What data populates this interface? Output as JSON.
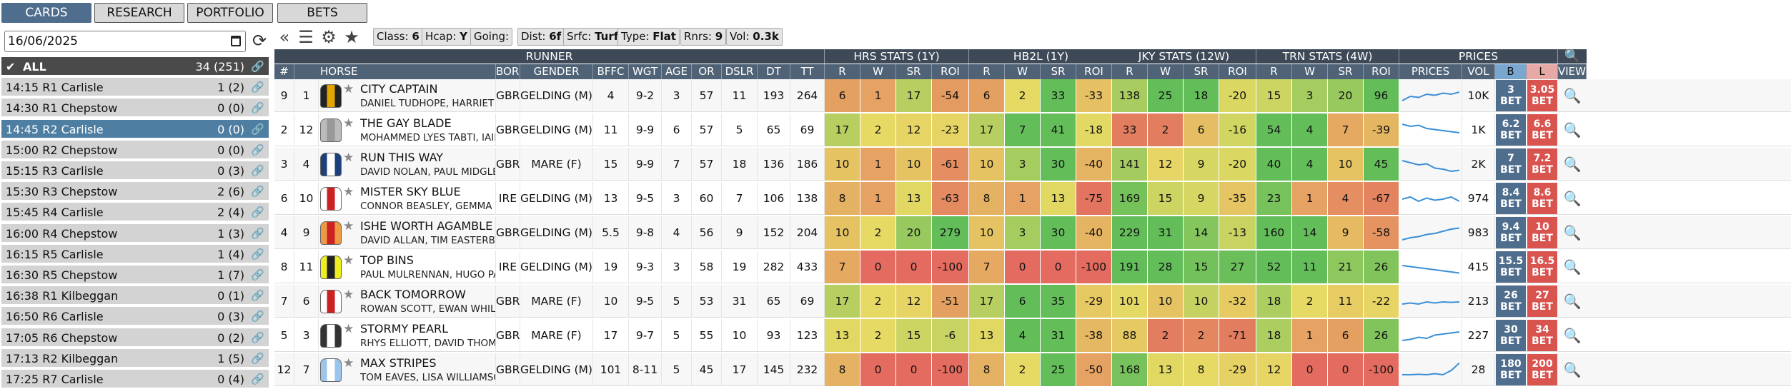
{
  "nav": {
    "cards": "CARDS",
    "research": "RESEARCH",
    "portfolio": "PORTFOLIO",
    "bets": "BETS"
  },
  "date": "16/06/2025",
  "races": [
    {
      "name": "ALL",
      "count": "34 (251)"
    },
    {
      "name": "14:15 R1 Carlisle",
      "count": "1 (2)"
    },
    {
      "name": "14:30 R1 Chepstow",
      "count": "0 (0)"
    },
    {
      "name": "14:45 R2 Carlisle",
      "count": "0 (0)"
    },
    {
      "name": "15:00 R2 Chepstow",
      "count": "0 (0)"
    },
    {
      "name": "15:15 R3 Carlisle",
      "count": "0 (3)"
    },
    {
      "name": "15:30 R3 Chepstow",
      "count": "2 (6)"
    },
    {
      "name": "15:45 R4 Carlisle",
      "count": "2 (4)"
    },
    {
      "name": "16:00 R4 Chepstow",
      "count": "1 (3)"
    },
    {
      "name": "16:15 R5 Carlisle",
      "count": "1 (4)"
    },
    {
      "name": "16:30 R5 Chepstow",
      "count": "1 (7)"
    },
    {
      "name": "16:38 R1 Kilbeggan",
      "count": "0 (1)"
    },
    {
      "name": "16:50 R6 Carlisle",
      "count": "0 (3)"
    },
    {
      "name": "17:05 R6 Chepstow",
      "count": "0 (2)"
    },
    {
      "name": "17:13 R2 Kilbeggan",
      "count": "1 (5)"
    },
    {
      "name": "17:25 R7 Carlisle",
      "count": "0 (4)"
    }
  ],
  "pills": {
    "class_l": "Class:",
    "class_v": "6",
    "hcap_l": "Hcap:",
    "hcap_v": "Y",
    "going_l": "Going:",
    "going_v": "",
    "dist_l": "Dist:",
    "dist_v": "6f",
    "srfc_l": "Srfc:",
    "srfc_v": "Turf",
    "type_l": "Type:",
    "type_v": "Flat",
    "rnrs_l": "Rnrs:",
    "rnrs_v": "9",
    "vol_l": "Vol:",
    "vol_v": "0.3k"
  },
  "groups": {
    "runner": "RUNNER",
    "hrs": "HRS STATS (1Y)",
    "hb2l": "HB2L (1Y)",
    "jky": "JKY STATS (12W)",
    "trn": "TRN STATS (4W)",
    "prices": "PRICES"
  },
  "cols": {
    "num": "#",
    "dr": "DR",
    "horse": "HORSE",
    "born": "BORN",
    "gender": "GENDER",
    "bffc": "BFFC",
    "wgt": "WGT",
    "age": "AGE",
    "or": "OR",
    "dslr": "DSLR",
    "dt": "DT",
    "tt": "TT",
    "r": "R",
    "w": "W",
    "sr": "SR",
    "roi": "ROI",
    "prices": "PRICES",
    "vol": "VOL",
    "b": "B",
    "l": "L",
    "view": "VIEW"
  },
  "rows": [
    {
      "num": "9",
      "dr": "1",
      "horse": "CITY CAPTAIN",
      "people": "DANIEL TUDHOPE, HARRIET BETHELL",
      "born": "GBR",
      "gender": "GELDING (M)",
      "bffc": "4",
      "wgt": "9-2",
      "age": "3",
      "or": "57",
      "dslr": "11",
      "dt": "193",
      "tt": "264",
      "hrs": [
        "6",
        "1",
        "17",
        "-54"
      ],
      "hb2l": [
        "6",
        "2",
        "33",
        "-33"
      ],
      "jky": [
        "138",
        "25",
        "18",
        "-20"
      ],
      "trn": [
        "15",
        "3",
        "20",
        "96"
      ],
      "vol": "10K",
      "b": "3",
      "l": "3.05",
      "spark": [
        0.3,
        0.5,
        0.45,
        0.6,
        0.55,
        0.65,
        0.6,
        0.7
      ]
    },
    {
      "num": "2",
      "dr": "12",
      "horse": "THE GAY BLADE",
      "people": "MOHAMMED LYES TABTI, IAIN JARDINE",
      "born": "GBR",
      "gender": "GELDING (M)",
      "bffc": "11",
      "wgt": "9-9",
      "age": "6",
      "or": "57",
      "dslr": "5",
      "dt": "65",
      "tt": "69",
      "hrs": [
        "17",
        "2",
        "12",
        "-23"
      ],
      "hb2l": [
        "17",
        "7",
        "41",
        "-18"
      ],
      "jky": [
        "33",
        "2",
        "6",
        "-16"
      ],
      "trn": [
        "54",
        "4",
        "7",
        "-39"
      ],
      "vol": "1K",
      "b": "6.2",
      "l": "6.6",
      "spark": [
        0.8,
        0.7,
        0.75,
        0.6,
        0.55,
        0.5,
        0.45,
        0.4
      ]
    },
    {
      "num": "3",
      "dr": "4",
      "horse": "RUN THIS WAY",
      "people": "DAVID NOLAN, PAUL MIDGLEY",
      "born": "GBR",
      "gender": "MARE (F)",
      "bffc": "15",
      "wgt": "9-9",
      "age": "7",
      "or": "57",
      "dslr": "18",
      "dt": "136",
      "tt": "186",
      "hrs": [
        "10",
        "1",
        "10",
        "-61"
      ],
      "hb2l": [
        "10",
        "3",
        "30",
        "-40"
      ],
      "jky": [
        "141",
        "12",
        "9",
        "-20"
      ],
      "trn": [
        "40",
        "4",
        "10",
        "45"
      ],
      "vol": "2K",
      "b": "7",
      "l": "7.2",
      "spark": [
        0.7,
        0.6,
        0.5,
        0.55,
        0.35,
        0.3,
        0.2,
        0.25
      ]
    },
    {
      "num": "6",
      "dr": "10",
      "horse": "MISTER SKY BLUE",
      "people": "CONNOR BEASLEY, GEMMA TUTTY",
      "born": "IRE",
      "gender": "GELDING (M)",
      "bffc": "13",
      "wgt": "9-5",
      "age": "3",
      "or": "60",
      "dslr": "7",
      "dt": "106",
      "tt": "138",
      "hrs": [
        "8",
        "1",
        "13",
        "-63"
      ],
      "hb2l": [
        "8",
        "1",
        "13",
        "-75"
      ],
      "jky": [
        "169",
        "15",
        "9",
        "-35"
      ],
      "trn": [
        "23",
        "1",
        "4",
        "-67"
      ],
      "vol": "974",
      "b": "8.4",
      "l": "8.6",
      "spark": [
        0.5,
        0.6,
        0.4,
        0.55,
        0.45,
        0.5,
        0.6,
        0.4
      ]
    },
    {
      "num": "4",
      "dr": "9",
      "horse": "ISHE WORTH AGAMBLE",
      "people": "DAVID ALLAN, TIM EASTERBY",
      "born": "GBR",
      "gender": "GELDING (M)",
      "bffc": "5.5",
      "wgt": "9-8",
      "age": "4",
      "or": "56",
      "dslr": "9",
      "dt": "152",
      "tt": "204",
      "hrs": [
        "10",
        "2",
        "20",
        "279"
      ],
      "hb2l": [
        "10",
        "3",
        "30",
        "-40"
      ],
      "jky": [
        "229",
        "31",
        "14",
        "-13"
      ],
      "trn": [
        "160",
        "14",
        "9",
        "-58"
      ],
      "vol": "983",
      "b": "9.4",
      "l": "10",
      "spark": [
        0.2,
        0.3,
        0.35,
        0.45,
        0.5,
        0.6,
        0.7,
        0.75
      ]
    },
    {
      "num": "8",
      "dr": "11",
      "horse": "TOP BINS",
      "people": "PAUL MULRENNAN, HUGO PALMER",
      "born": "IRE",
      "gender": "GELDING (M)",
      "bffc": "19",
      "wgt": "9-3",
      "age": "3",
      "or": "58",
      "dslr": "19",
      "dt": "282",
      "tt": "433",
      "hrs": [
        "7",
        "0",
        "0",
        "-100"
      ],
      "hb2l": [
        "7",
        "0",
        "0",
        "-100"
      ],
      "jky": [
        "191",
        "28",
        "15",
        "27"
      ],
      "trn": [
        "52",
        "11",
        "21",
        "26"
      ],
      "vol": "415",
      "b": "15.5",
      "l": "16.5",
      "spark": [
        0.6,
        0.55,
        0.5,
        0.45,
        0.4,
        0.35,
        0.3,
        0.25
      ]
    },
    {
      "num": "7",
      "dr": "6",
      "horse": "BACK TOMORROW",
      "people": "ROWAN SCOTT, EWAN WHILLANS",
      "born": "GBR",
      "gender": "MARE (F)",
      "bffc": "10",
      "wgt": "9-5",
      "age": "5",
      "or": "53",
      "dslr": "31",
      "dt": "65",
      "tt": "69",
      "hrs": [
        "17",
        "2",
        "12",
        "-51"
      ],
      "hb2l": [
        "17",
        "6",
        "35",
        "-29"
      ],
      "jky": [
        "101",
        "10",
        "10",
        "-32"
      ],
      "trn": [
        "18",
        "2",
        "11",
        "-22"
      ],
      "vol": "213",
      "b": "26",
      "l": "27",
      "spark": [
        0.4,
        0.45,
        0.4,
        0.5,
        0.45,
        0.5,
        0.48,
        0.5
      ]
    },
    {
      "num": "5",
      "dr": "3",
      "horse": "STORMY PEARL",
      "people": "RHYS ELLIOTT, DAVID THOMPSON",
      "born": "GBR",
      "gender": "MARE (F)",
      "bffc": "17",
      "wgt": "9-7",
      "age": "5",
      "or": "55",
      "dslr": "10",
      "dt": "93",
      "tt": "123",
      "hrs": [
        "13",
        "2",
        "15",
        "-6"
      ],
      "hb2l": [
        "13",
        "4",
        "31",
        "-38"
      ],
      "jky": [
        "88",
        "2",
        "2",
        "-71"
      ],
      "trn": [
        "18",
        "1",
        "6",
        "26"
      ],
      "vol": "227",
      "b": "30",
      "l": "34",
      "spark": [
        0.3,
        0.35,
        0.45,
        0.4,
        0.55,
        0.6,
        0.65,
        0.7
      ]
    },
    {
      "num": "12",
      "dr": "7",
      "horse": "MAX STRIPES",
      "people": "TOM EAVES, LISA WILLIAMSON",
      "born": "GBR",
      "gender": "GELDING (M)",
      "bffc": "101",
      "wgt": "8-11",
      "age": "5",
      "or": "45",
      "dslr": "17",
      "dt": "145",
      "tt": "232",
      "hrs": [
        "8",
        "0",
        "0",
        "-100"
      ],
      "hb2l": [
        "8",
        "2",
        "25",
        "-50"
      ],
      "jky": [
        "168",
        "13",
        "8",
        "-29"
      ],
      "trn": [
        "12",
        "0",
        "0",
        "-100"
      ],
      "vol": "28",
      "b": "180",
      "l": "200",
      "spark": [
        0.3,
        0.3,
        0.32,
        0.3,
        0.35,
        0.3,
        0.5,
        0.85
      ]
    }
  ],
  "bet_text": "BET",
  "colors": {
    "nav_active": "#4f6d8d",
    "back": "#4f6d8d",
    "lay": "#d9534f",
    "good": "#63be5a",
    "mid": "#e6d964",
    "bad": "#e36b5f"
  }
}
